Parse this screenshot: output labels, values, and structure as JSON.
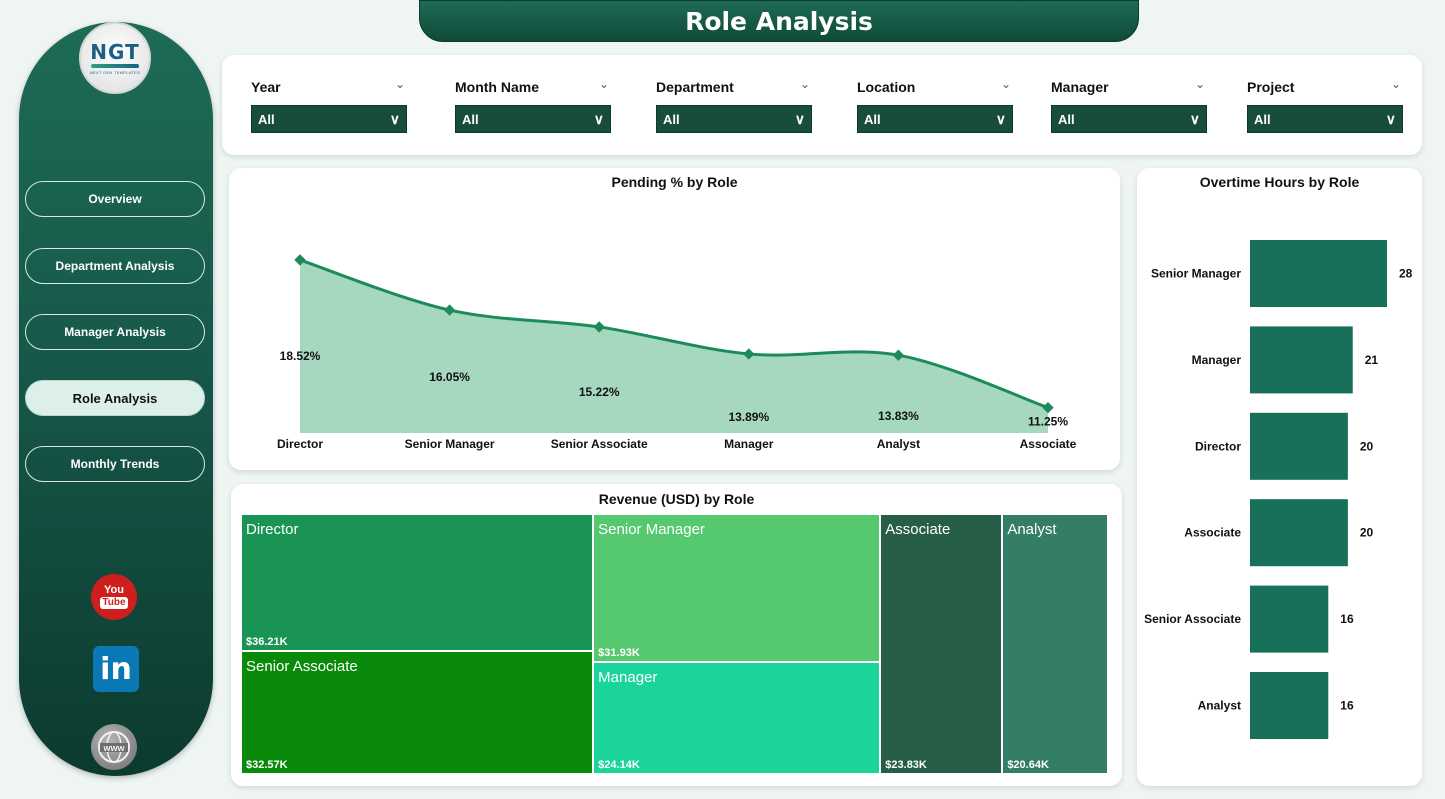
{
  "title": "Role Analysis",
  "logo": {
    "text": "NGT",
    "subtext": "NEXT GEN TEMPLATES"
  },
  "nav": [
    {
      "label": "Overview",
      "active": false
    },
    {
      "label": "Department Analysis",
      "active": false
    },
    {
      "label": "Manager Analysis",
      "active": false
    },
    {
      "label": "Role Analysis",
      "active": true
    },
    {
      "label": "Monthly Trends",
      "active": false
    }
  ],
  "social": {
    "youtube_top": "You",
    "youtube_bottom": "Tube",
    "linkedin": "in"
  },
  "filters": [
    {
      "label": "Year",
      "value": "All"
    },
    {
      "label": "Month Name",
      "value": "All"
    },
    {
      "label": "Department",
      "value": "All"
    },
    {
      "label": "Location",
      "value": "All"
    },
    {
      "label": "Manager",
      "value": "All"
    },
    {
      "label": "Project",
      "value": "All"
    }
  ],
  "colors": {
    "accent": "#1d8a5a",
    "area_fill": "#a6d8c0",
    "bar": "#18705a"
  },
  "chart_data": [
    {
      "type": "area",
      "title": "Pending % by Role",
      "categories": [
        "Director",
        "Senior Manager",
        "Senior Associate",
        "Manager",
        "Analyst",
        "Associate"
      ],
      "values": [
        18.52,
        16.05,
        15.22,
        13.89,
        13.83,
        11.25
      ],
      "labels": [
        "18.52%",
        "16.05%",
        "15.22%",
        "13.89%",
        "13.83%",
        "11.25%"
      ],
      "ylim": [
        10,
        19.5
      ]
    },
    {
      "type": "bar",
      "orientation": "horizontal",
      "title": "Overtime Hours by Role",
      "categories": [
        "Senior Manager",
        "Manager",
        "Director",
        "Associate",
        "Senior Associate",
        "Analyst"
      ],
      "values": [
        28,
        21,
        20,
        20,
        16,
        16
      ],
      "xlim": [
        0,
        28
      ]
    },
    {
      "type": "treemap",
      "title": "Revenue (USD) by Role",
      "items": [
        {
          "name": "Director",
          "value": 36.21,
          "label": "$36.21K",
          "color": "#1a9455"
        },
        {
          "name": "Senior Associate",
          "value": 32.57,
          "label": "$32.57K",
          "color": "#0a8a0a"
        },
        {
          "name": "Senior Manager",
          "value": 31.93,
          "label": "$31.93K",
          "color": "#56c86f"
        },
        {
          "name": "Manager",
          "value": 24.14,
          "label": "$24.14K",
          "color": "#1ad49b"
        },
        {
          "name": "Associate",
          "value": 23.83,
          "label": "$23.83K",
          "color": "#275e47"
        },
        {
          "name": "Analyst",
          "value": 20.64,
          "label": "$20.64K",
          "color": "#347d66"
        }
      ]
    }
  ]
}
